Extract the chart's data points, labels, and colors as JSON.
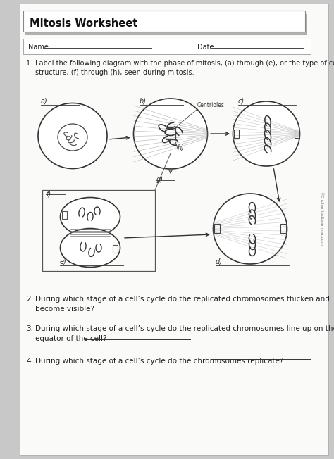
{
  "title": "Mitosis Worksheet",
  "name_label": "Name:",
  "date_label": "Date:",
  "q1_num": "1.",
  "q1_text": "Label the following diagram with the phase of mitosis, (a) through (e), or the type of cell\nstructure, (f) through (h), seen during mitosis.",
  "q2_num": "2.",
  "q2_text": "During which stage of a cell’s cycle do the replicated chromosomes thicken and\nbecome visible?",
  "q3_num": "3.",
  "q3_text": "During which stage of a cell’s cycle do the replicated chromosomes line up on the\nequator of the cell?",
  "q4_num": "4.",
  "q4_text": "During which stage of a cell’s cycle do the chromosomes replicate?",
  "copyright": "©EnchantedLearning.com",
  "page_bg": "#fafaf8",
  "outer_bg": "#c8c8c8",
  "title_bg": "#ffffff",
  "title_shadow": "#b0b0b0",
  "namebox_bg": "#ffffff"
}
